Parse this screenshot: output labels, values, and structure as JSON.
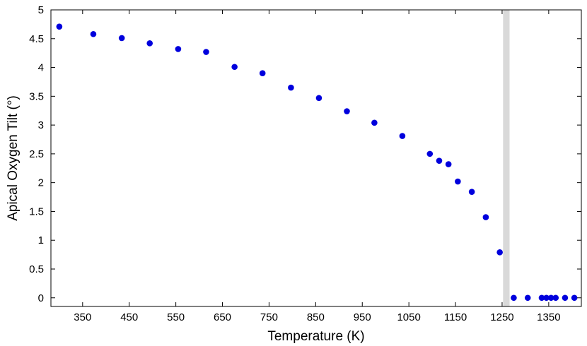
{
  "chart_data": {
    "type": "scatter",
    "xlabel": "Temperature (K)",
    "ylabel": "Apical Oxygen Tilt (°)",
    "xlim": [
      282,
      1420
    ],
    "ylim": [
      -0.15,
      5
    ],
    "xticks": [
      350,
      450,
      550,
      650,
      750,
      850,
      950,
      1050,
      1150,
      1250,
      1350
    ],
    "xtick_labels": [
      "350",
      "450",
      "550",
      "650",
      "750",
      "850",
      "950",
      "1050",
      "1150",
      "1250",
      "1350"
    ],
    "yticks": [
      0,
      0.5,
      1,
      1.5,
      2,
      2.5,
      3,
      3.5,
      4,
      4.5,
      5
    ],
    "ytick_labels": [
      "0",
      "0.5",
      "1",
      "1.5",
      "2",
      "2.5",
      "3",
      "3.5",
      "4",
      "4.5",
      "5"
    ],
    "grid": false,
    "marker_color": "#0000dd",
    "shaded_band": {
      "x_range": [
        1252,
        1266
      ],
      "color": "#d9d9d9"
    },
    "points": [
      {
        "x": 300,
        "y": 4.71
      },
      {
        "x": 373,
        "y": 4.58
      },
      {
        "x": 434,
        "y": 4.51
      },
      {
        "x": 494,
        "y": 4.42
      },
      {
        "x": 555,
        "y": 4.32
      },
      {
        "x": 615,
        "y": 4.27
      },
      {
        "x": 676,
        "y": 4.01
      },
      {
        "x": 736,
        "y": 3.9
      },
      {
        "x": 797,
        "y": 3.65
      },
      {
        "x": 857,
        "y": 3.47
      },
      {
        "x": 917,
        "y": 3.24
      },
      {
        "x": 976,
        "y": 3.04
      },
      {
        "x": 1036,
        "y": 2.81
      },
      {
        "x": 1095,
        "y": 2.5
      },
      {
        "x": 1115,
        "y": 2.38
      },
      {
        "x": 1135,
        "y": 2.32
      },
      {
        "x": 1155,
        "y": 2.02
      },
      {
        "x": 1185,
        "y": 1.84
      },
      {
        "x": 1215,
        "y": 1.4
      },
      {
        "x": 1245,
        "y": 0.79
      },
      {
        "x": 1275,
        "y": 0.0
      },
      {
        "x": 1305,
        "y": 0.0
      },
      {
        "x": 1335,
        "y": 0.0
      },
      {
        "x": 1345,
        "y": 0.0
      },
      {
        "x": 1355,
        "y": 0.0
      },
      {
        "x": 1365,
        "y": 0.0
      },
      {
        "x": 1385,
        "y": 0.0
      },
      {
        "x": 1405,
        "y": 0.0
      }
    ]
  }
}
